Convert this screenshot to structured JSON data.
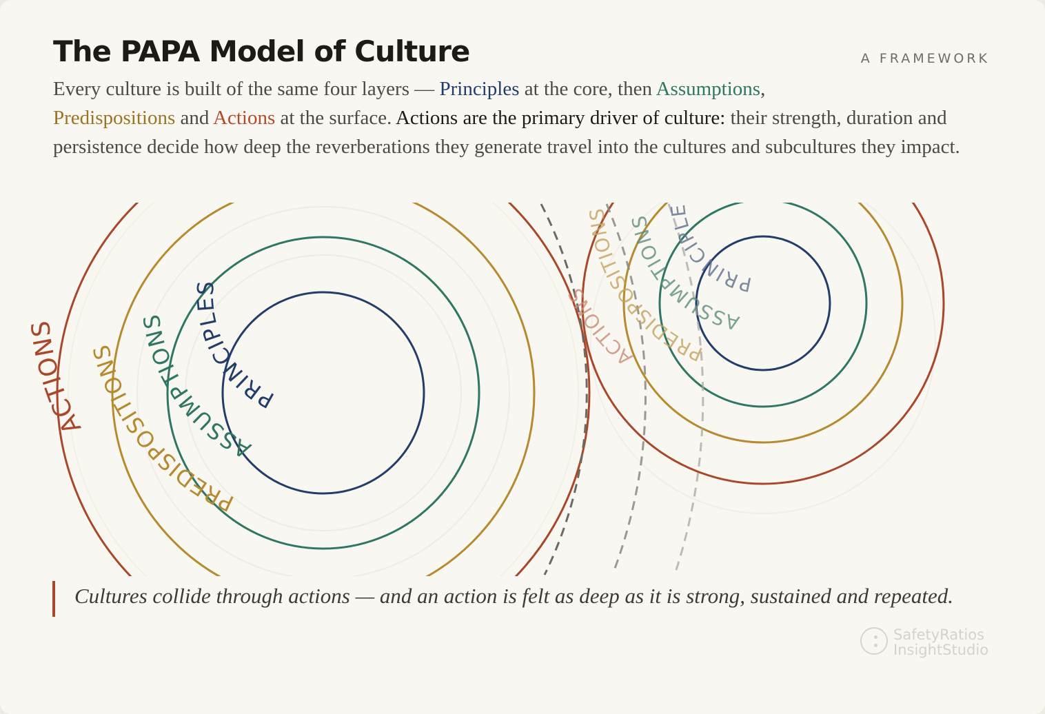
{
  "header": {
    "title": "The PAPA Model of Culture",
    "kicker": "A FRAMEWORK"
  },
  "intro": {
    "t1": "Every culture is built of the same four layers — ",
    "principles": "Principles",
    "t2": " at the core, then ",
    "assumptions": "Assumptions",
    "t3": ",",
    "predispositions": "Predispositions",
    "t4": " and ",
    "actions": "Actions",
    "t5": " at the surface. ",
    "emphasis": "Actions are the primary driver of culture:",
    "t6": " their strength, duration and persistence decide how deep the reverberations they generate travel into the cultures and subcultures they impact."
  },
  "diagram": {
    "left_culture": {
      "principles": "PRINCIPLES",
      "assumptions": "ASSUMPTIONS",
      "predispositions": "PREDISPOSITIONS",
      "actions": "ACTIONS"
    },
    "right_culture": {
      "principles": "PRINCIPLES",
      "assumptions": "ASSUMPTIONS",
      "predispositions": "PREDISPOSITIONS",
      "actions": "ACTIONS"
    },
    "colors": {
      "principles": "#233d6b",
      "assumptions": "#2f7663",
      "predispositions": "#b68a2e",
      "actions": "#a9472a",
      "reverberation": "#55534c"
    }
  },
  "quote": {
    "text": "Cultures collide through actions — and an action is felt as deep as it is strong, sustained and repeated."
  },
  "brand": {
    "line1": "SafetyRatios",
    "line2": "InsightStudio"
  }
}
